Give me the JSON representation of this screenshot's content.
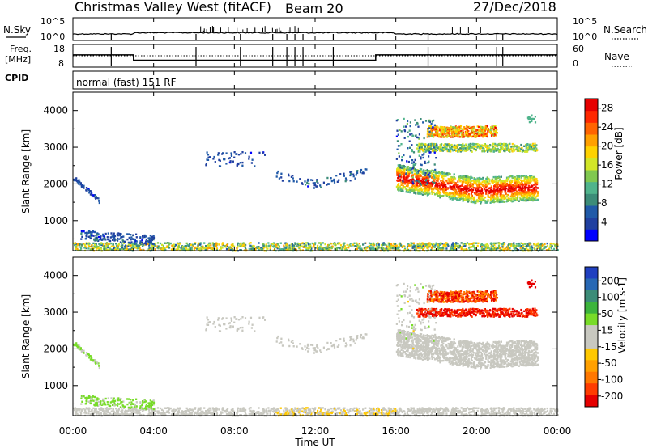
{
  "header": {
    "title": "Christmas Valley West (fitACF)",
    "beam": "Beam 20",
    "date": "27/Dec/2018"
  },
  "noise_panel": {
    "left_label": "N.Sky",
    "left_ticks": [
      "10^5",
      "10^0"
    ],
    "right_ticks": [
      "10^5",
      "10^0"
    ],
    "right_label": "N.Search",
    "right_style": "dotted"
  },
  "freq_panel": {
    "left_label_1": "Freq.",
    "left_label_2": "[MHz]",
    "left_ticks": [
      "18",
      "8"
    ],
    "right_ticks": [
      "60",
      "0"
    ],
    "right_label": "Nave",
    "right_style": "dotted"
  },
  "cpid_panel": {
    "label": "CPID",
    "mode": "normal (fast) 151 RF"
  },
  "power_panel": {
    "ylabel": "Slant Range [km]",
    "yticks": [
      "1000",
      "2000",
      "3000",
      "4000"
    ],
    "colorbar_label": "Power [dB]",
    "colorbar_ticks": [
      "4",
      "8",
      "12",
      "16",
      "20",
      "24",
      "28"
    ],
    "colors": [
      "#0000ff",
      "#2040a0",
      "#205aa8",
      "#3c8c78",
      "#50b48c",
      "#80c850",
      "#d2e628",
      "#ffd200",
      "#ffa000",
      "#ff6400",
      "#ff2800",
      "#e60000"
    ]
  },
  "velocity_panel": {
    "ylabel": "Slant Range [km]",
    "yticks": [
      "1000",
      "2000",
      "3000",
      "4000"
    ],
    "colorbar_label": "Velocity [m s-1]",
    "colorbar_ticks": [
      "200",
      "100",
      "50",
      "15",
      "-15",
      "-50",
      "-100",
      "-200"
    ],
    "colors": [
      "#2040c0",
      "#2868b4",
      "#3c8c78",
      "#3cb43c",
      "#78dc28",
      "#c8c8c0",
      "#c8c8c0",
      "#ffc800",
      "#ffa000",
      "#ff7800",
      "#ff3c00",
      "#e60000"
    ]
  },
  "xaxis": {
    "label": "Time UT",
    "ticks": [
      "00:00",
      "04:00",
      "08:00",
      "12:00",
      "16:00",
      "20:00",
      "00:00"
    ]
  },
  "chart_data": {
    "type": "heatmap",
    "x_range_hours": [
      0,
      24
    ],
    "y_range_km": [
      180,
      4500
    ],
    "nsky_noise_level": "approximately 10^0.6 to 10^1",
    "frequency_steps": [
      {
        "start_h": 0,
        "end_h": 3.0,
        "freq_mhz": 13.5
      },
      {
        "start_h": 3.0,
        "end_h": 15.0,
        "freq_mhz": 10.5
      },
      {
        "start_h": 15.0,
        "end_h": 24.0,
        "freq_mhz": 13.5
      }
    ],
    "scatter_regions": [
      {
        "name": "near-range ground scatter",
        "t": [
          0,
          24
        ],
        "range_km": [
          200,
          450
        ],
        "power_db": 16,
        "velocity": 0
      },
      {
        "name": "early morning band",
        "t": [
          0.3,
          4.0
        ],
        "range_km": [
          500,
          800
        ],
        "power_db": 6,
        "velocity": 20
      },
      {
        "name": "early-hour descending",
        "t": [
          0,
          1.3
        ],
        "range_km": [
          1500,
          2200
        ],
        "power_db": 6,
        "velocity": 20
      },
      {
        "name": "morning patch",
        "t": [
          6.5,
          9.5
        ],
        "range_km": [
          2500,
          2900
        ],
        "power_db": 6,
        "velocity": 0
      },
      {
        "name": "midday patch",
        "t": [
          10,
          14.5
        ],
        "range_km": [
          1900,
          2300
        ],
        "power_db": 6,
        "velocity": 0
      },
      {
        "name": "evening lower band",
        "t": [
          16,
          23
        ],
        "range_km": [
          1500,
          2400
        ],
        "power_db": 24,
        "velocity": 0
      },
      {
        "name": "evening mid band",
        "t": [
          17,
          23
        ],
        "range_km": [
          2900,
          3100
        ],
        "power_db": 14,
        "velocity": -200
      },
      {
        "name": "evening upper band",
        "t": [
          17.5,
          21
        ],
        "range_km": [
          3300,
          3600
        ],
        "power_db": 22,
        "velocity": -120
      }
    ]
  }
}
